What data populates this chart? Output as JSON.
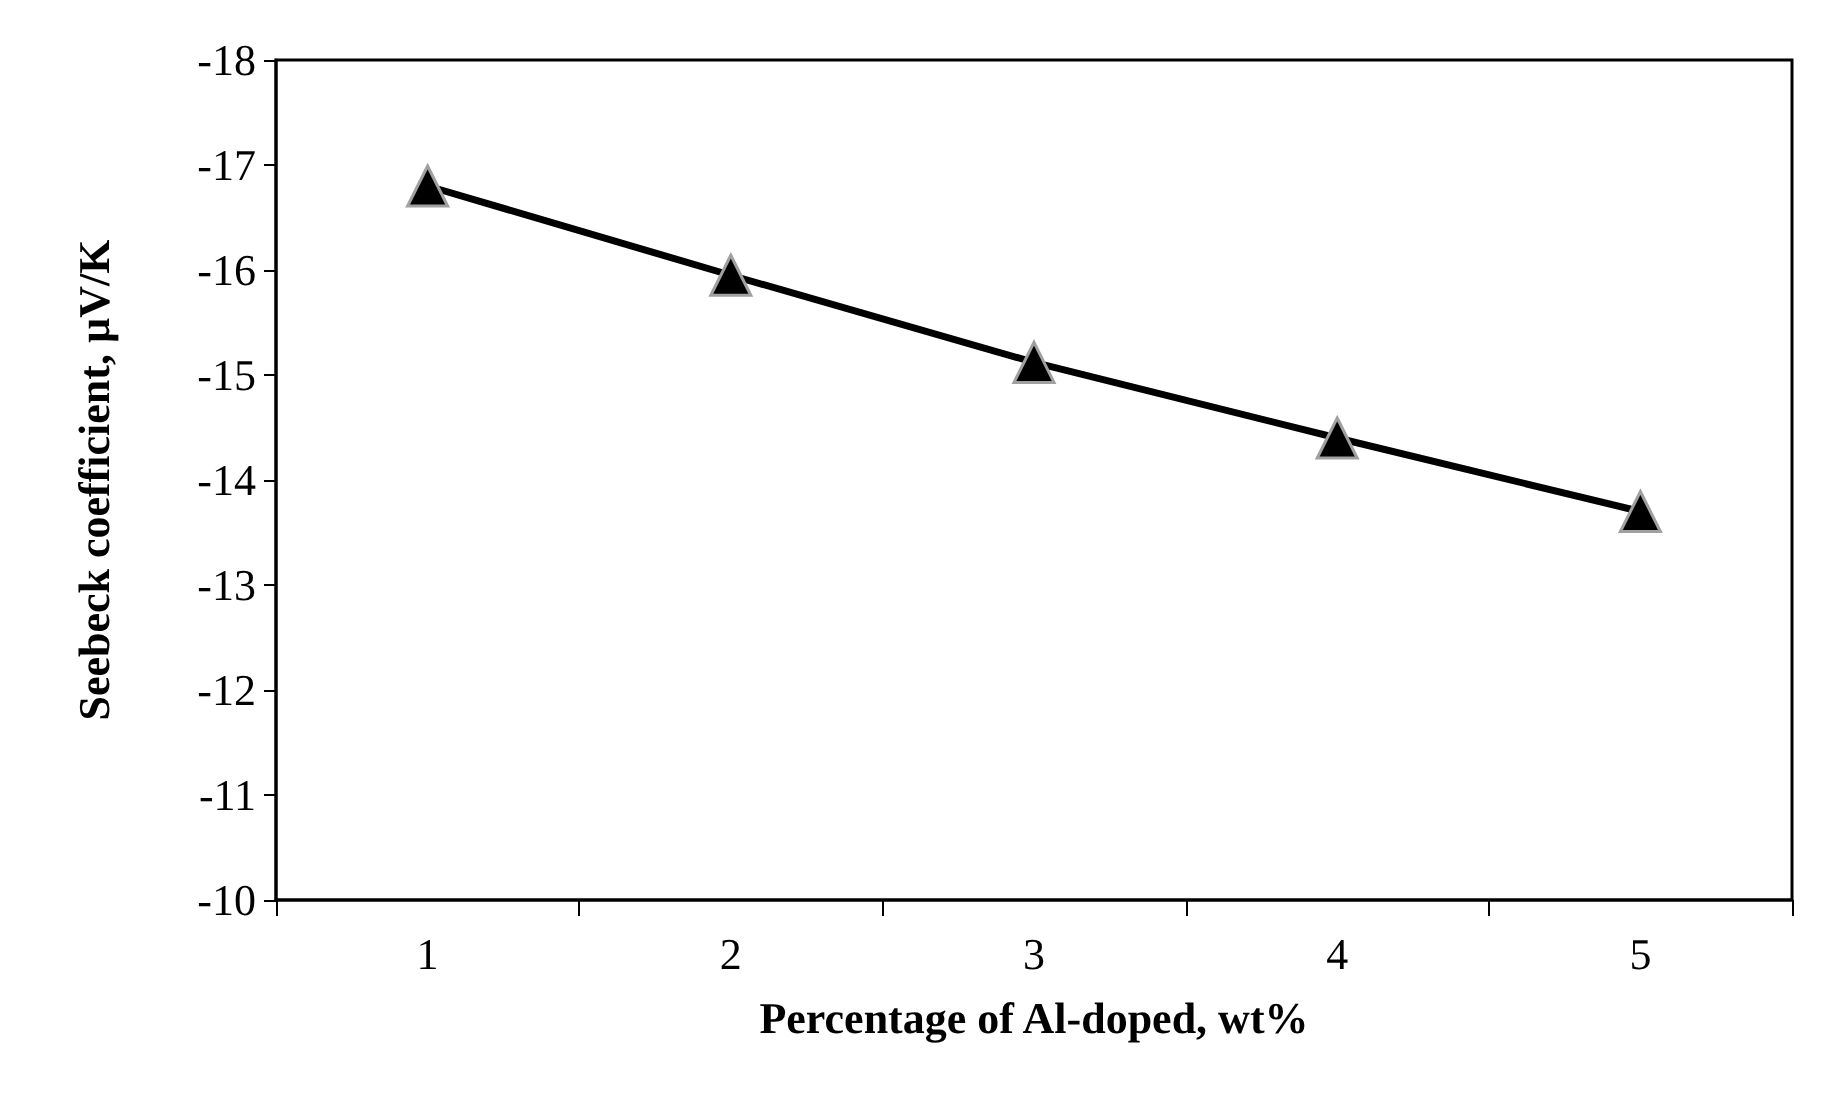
{
  "chart_data": {
    "type": "line",
    "xlabel": "Percentage of Al-doped, wt%",
    "ylabel": "Seebeck coefficient, µV/K",
    "categories": [
      "1",
      "2",
      "3",
      "4",
      "5"
    ],
    "series": [
      {
        "color": "#000000",
        "values": [
          -16.8,
          -15.95,
          -15.12,
          -14.4,
          -13.7
        ]
      }
    ],
    "ylim": [
      -10,
      -18
    ],
    "yticks": [
      -18,
      -17,
      -16,
      -15,
      -14,
      -13,
      -12,
      -11,
      -10
    ],
    "marker": "triangle",
    "line_style": "solid"
  }
}
